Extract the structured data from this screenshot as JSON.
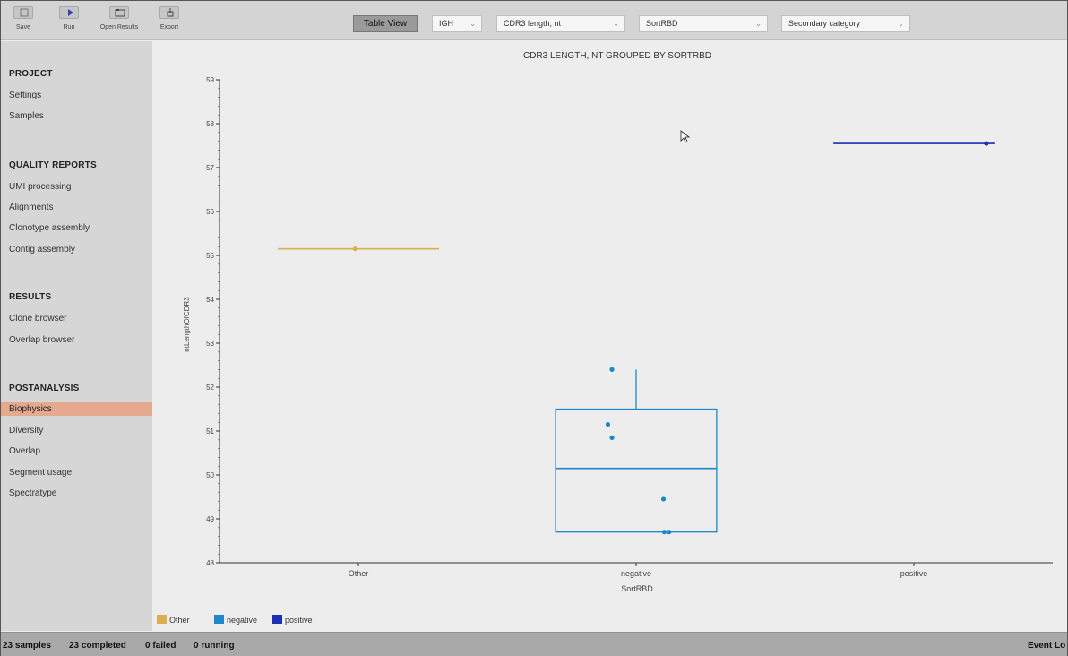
{
  "toolbar": {
    "buttons": [
      {
        "label": "Save",
        "icon": "save-icon"
      },
      {
        "label": "Run",
        "icon": "play-icon"
      },
      {
        "label": "Open Results",
        "icon": "folder-icon"
      },
      {
        "label": "Export",
        "icon": "export-icon"
      }
    ],
    "view_button": "Table View",
    "selects": {
      "chain": "IGH",
      "metric": "CDR3 length, nt",
      "group": "SortRBD",
      "secondary": "Secondary category"
    }
  },
  "sidebar": {
    "sections": [
      {
        "title": "PROJECT",
        "items": [
          "Settings",
          "Samples"
        ]
      },
      {
        "title": "QUALITY REPORTS",
        "items": [
          "UMI processing",
          "Alignments",
          "Clonotype assembly",
          "Contig assembly"
        ]
      },
      {
        "title": "RESULTS",
        "items": [
          "Clone browser",
          "Overlap browser"
        ]
      },
      {
        "title": "POSTANALYSIS",
        "items": [
          "Biophysics",
          "Diversity",
          "Overlap",
          "Segment usage",
          "Spectratype"
        ]
      }
    ],
    "active_item": "Biophysics"
  },
  "chart_data": {
    "type": "box",
    "title": "CDR3 LENGTH, NT GROUPED BY SORTRBD",
    "xlabel": "SortRBD",
    "ylabel": "ntLengthOfCDR3",
    "ylim": [
      48,
      59
    ],
    "yticks": [
      "48",
      "49",
      "50",
      "51",
      "52",
      "53",
      "54",
      "55",
      "56",
      "57",
      "58",
      "59"
    ],
    "categories": [
      "Other",
      "negative",
      "positive"
    ],
    "colors": {
      "Other": "#d8b04e",
      "negative": "#1f86c9",
      "positive": "#1c2fb5"
    },
    "series": [
      {
        "name": "Other",
        "median": 55.15,
        "q1": 55.15,
        "q3": 55.15,
        "whisker_low": 55.15,
        "whisker_high": 55.15,
        "points": [
          55.15
        ]
      },
      {
        "name": "negative",
        "median": 50.15,
        "q1": 48.7,
        "q3": 51.5,
        "whisker_low": 48.7,
        "whisker_high": 52.4,
        "points": [
          52.4,
          51.15,
          50.85,
          49.45,
          48.7,
          48.7
        ]
      },
      {
        "name": "positive",
        "median": 57.55,
        "q1": 57.55,
        "q3": 57.55,
        "whisker_low": 57.55,
        "whisker_high": 57.55,
        "points": [
          57.55
        ]
      }
    ],
    "legend": [
      "Other",
      "negative",
      "positive"
    ],
    "legend_position": "bottom-left",
    "grid": false
  },
  "status": {
    "samples": "23 samples",
    "completed": "23 completed",
    "failed": "0 failed",
    "running": "0 running",
    "event_log": "Event Lo"
  }
}
